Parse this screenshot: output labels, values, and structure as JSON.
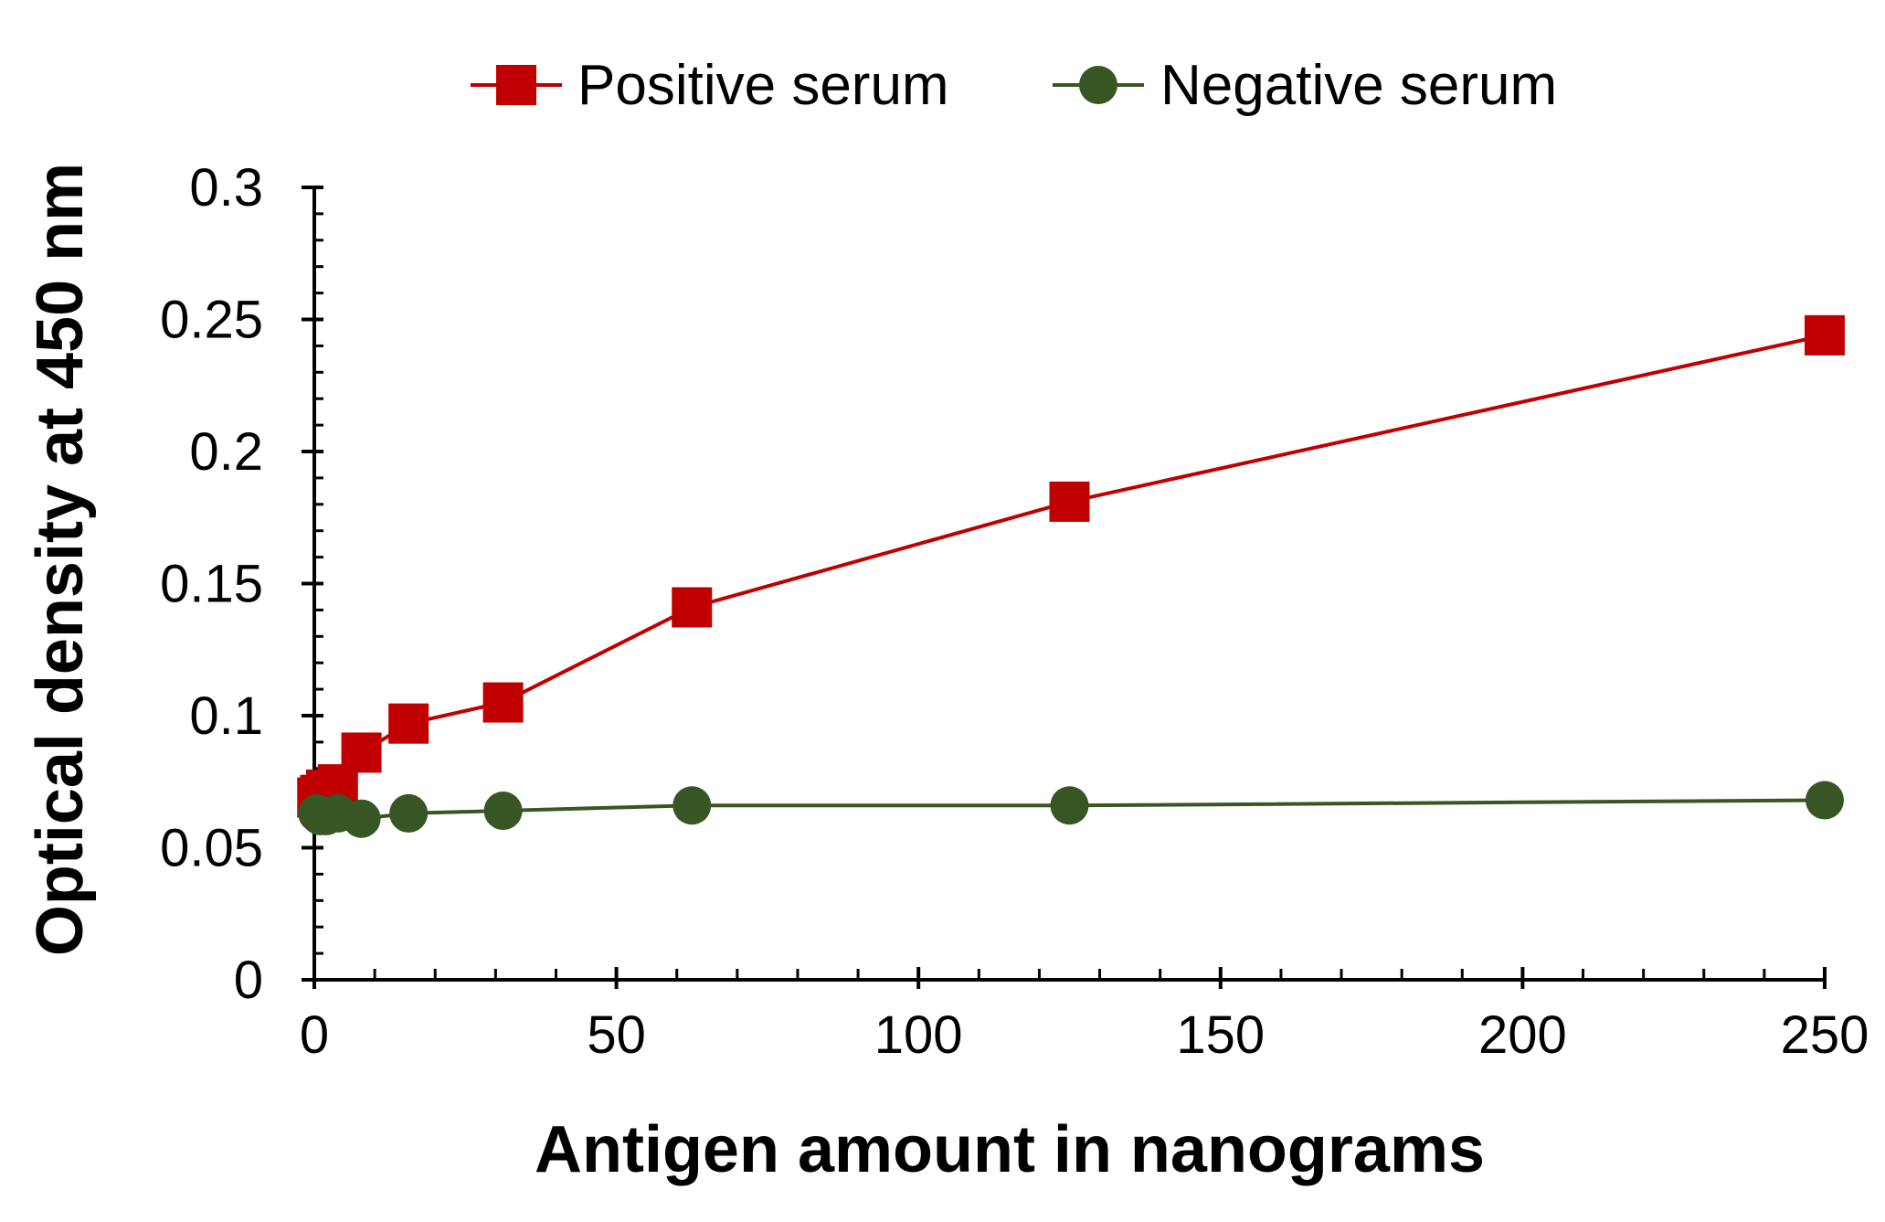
{
  "chart_data": {
    "type": "line",
    "title": "",
    "xlabel": "Antigen amount in nanograms",
    "ylabel": "Optical density at 450 nm",
    "xlim": [
      0,
      250
    ],
    "ylim": [
      0,
      0.3
    ],
    "x_ticks": [
      "0",
      "50",
      "100",
      "150",
      "200",
      "250"
    ],
    "y_ticks": [
      "0",
      "0.05",
      "0.1",
      "0.15",
      "0.2",
      "0.25",
      "0.3"
    ],
    "legend_position": "top",
    "series": [
      {
        "name": "Positive serum",
        "color": "#c00000",
        "marker": "square",
        "x": [
          0.49,
          0.98,
          1.95,
          3.9,
          7.8,
          15.6,
          31.25,
          62.5,
          125,
          250
        ],
        "y": [
          0.069,
          0.07,
          0.072,
          0.074,
          0.086,
          0.097,
          0.105,
          0.141,
          0.181,
          0.244
        ]
      },
      {
        "name": "Negative serum",
        "color": "#375623",
        "marker": "circle",
        "x": [
          0.49,
          0.98,
          1.95,
          3.9,
          7.8,
          15.6,
          31.25,
          62.5,
          125,
          250
        ],
        "y": [
          0.063,
          0.062,
          0.062,
          0.063,
          0.061,
          0.063,
          0.064,
          0.066,
          0.066,
          0.068
        ]
      }
    ]
  }
}
